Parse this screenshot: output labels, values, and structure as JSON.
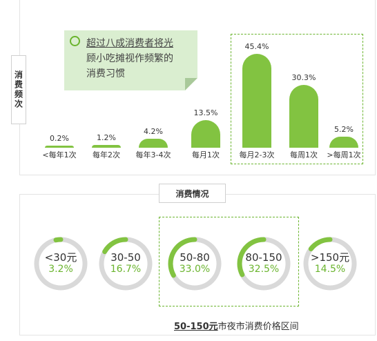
{
  "callout": {
    "line1": "超过八成消费者将光",
    "line2": "顾小吃摊视作频繁的",
    "line3": "消费习惯"
  },
  "freq_axis_label": "消费频次",
  "spend_title": "消费情况",
  "footer": {
    "highlight": "50-150元",
    "rest": "市夜市消费价格区间"
  },
  "colors": {
    "accent": "#82c341",
    "ring_track": "#d9d9d9"
  },
  "chart_data": [
    {
      "type": "bar",
      "title": "",
      "categories": [
        "<每年1次",
        "每年2次",
        "每年3-4次",
        "每月1次",
        "每月2-3次",
        "每周1次",
        ">每周1次"
      ],
      "values": [
        0.2,
        1.2,
        4.2,
        13.5,
        45.4,
        30.3,
        5.2
      ],
      "labels": [
        "0.2%",
        "1.2%",
        "4.2%",
        "13.5%",
        "45.4%",
        "30.3%",
        "5.2%"
      ],
      "ylabel": "消费频次",
      "ylim": [
        0,
        50
      ],
      "highlighted": [
        "每月2-3次",
        "每周1次",
        ">每周1次"
      ]
    },
    {
      "type": "pie",
      "title": "消费情况",
      "categories": [
        "<30元",
        "30-50",
        "50-80",
        "80-150",
        ">150元"
      ],
      "values": [
        3.2,
        16.7,
        33.0,
        32.5,
        14.5
      ],
      "labels": [
        "3.2%",
        "16.7%",
        "33.0%",
        "32.5%",
        "14.5%"
      ],
      "highlighted": [
        "50-80",
        "80-150"
      ]
    }
  ]
}
